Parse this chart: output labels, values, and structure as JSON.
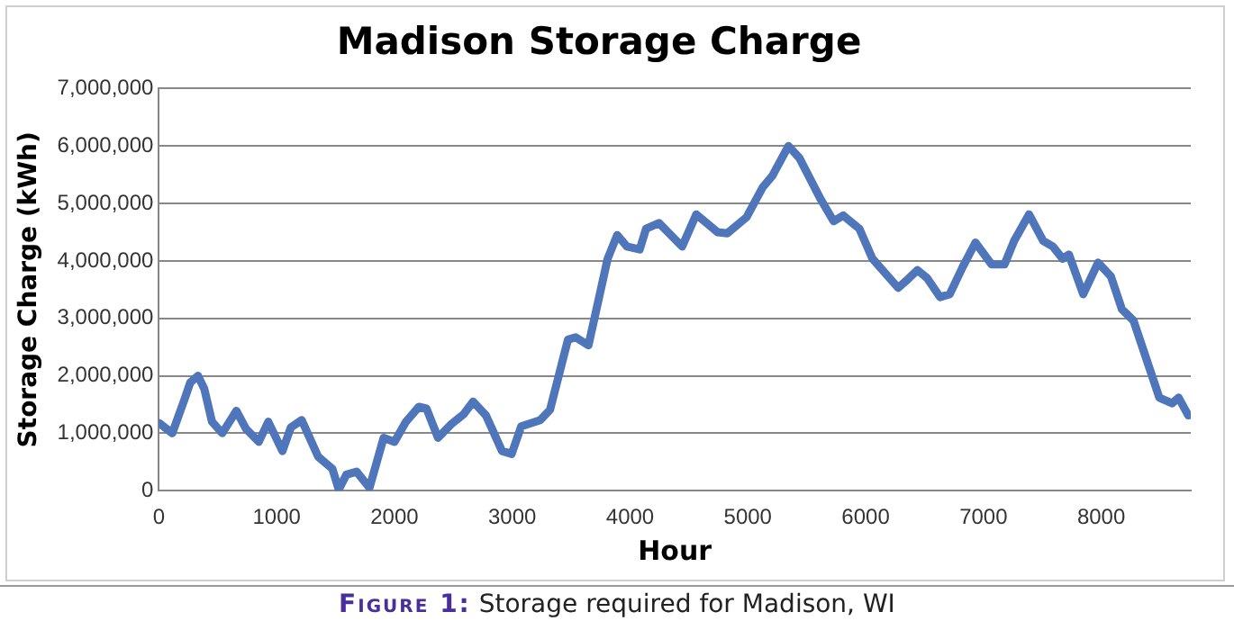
{
  "chart_data": {
    "type": "line",
    "title": "Madison Storage Charge",
    "xlabel": "Hour",
    "ylabel": "Storage Charge (kWh)",
    "annotations": [
      "Figure 1: Storage required for Madison, WI"
    ],
    "xlim": [
      0,
      8760
    ],
    "xticks": [
      0,
      1000,
      2000,
      3000,
      4000,
      5000,
      6000,
      7000,
      8000
    ],
    "ylim": [
      0,
      7000000
    ],
    "yticks": [
      {
        "value": 0,
        "label": "0"
      },
      {
        "value": 1000000,
        "label": "1,000,000"
      },
      {
        "value": 2000000,
        "label": "2,000,000"
      },
      {
        "value": 3000000,
        "label": "3,000,000"
      },
      {
        "value": 4000000,
        "label": "4,000,000"
      },
      {
        "value": 5000000,
        "label": "5,000,000"
      },
      {
        "value": 6000000,
        "label": "6,000,000"
      },
      {
        "value": 7000000,
        "label": "7,000,000"
      }
    ],
    "grid": "y",
    "legend": false,
    "marker": "none",
    "line_style": "solid",
    "x": [
      0,
      114,
      223,
      266,
      332,
      386,
      451,
      538,
      658,
      739,
      848,
      929,
      1049,
      1120,
      1212,
      1353,
      1473,
      1527,
      1592,
      1679,
      1788,
      1908,
      2000,
      2098,
      2207,
      2272,
      2370,
      2478,
      2587,
      2668,
      2777,
      2913,
      2995,
      3076,
      3239,
      3321,
      3473,
      3538,
      3647,
      3810,
      3891,
      3973,
      4082,
      4136,
      4245,
      4442,
      4562,
      4743,
      4825,
      4989,
      5126,
      5208,
      5345,
      5438,
      5619,
      5728,
      5810,
      5947,
      6057,
      6276,
      6358,
      6440,
      6522,
      6631,
      6714,
      6823,
      6932,
      7069,
      7179,
      7261,
      7387,
      7507,
      7589,
      7672,
      7726,
      7847,
      7973,
      8082,
      8175,
      8274,
      8493,
      8602,
      8657,
      8739
    ],
    "series": [
      {
        "color": "#4f75bb",
        "values": [
          1180000,
          1000000,
          1620000,
          1880000,
          2000000,
          1770000,
          1200000,
          1000000,
          1390000,
          1080000,
          850000,
          1200000,
          690000,
          1100000,
          1230000,
          590000,
          380000,
          20000,
          280000,
          330000,
          50000,
          920000,
          850000,
          1200000,
          1460000,
          1430000,
          920000,
          1150000,
          1330000,
          1550000,
          1310000,
          690000,
          640000,
          1120000,
          1230000,
          1410000,
          2630000,
          2670000,
          2530000,
          4040000,
          4450000,
          4250000,
          4200000,
          4560000,
          4660000,
          4250000,
          4810000,
          4500000,
          4480000,
          4760000,
          5280000,
          5480000,
          6000000,
          5790000,
          5070000,
          4690000,
          4790000,
          4560000,
          4040000,
          3530000,
          3680000,
          3840000,
          3700000,
          3370000,
          3420000,
          3890000,
          4320000,
          3940000,
          3940000,
          4350000,
          4810000,
          4350000,
          4250000,
          4040000,
          4110000,
          3420000,
          3970000,
          3730000,
          3160000,
          2960000,
          1620000,
          1520000,
          1620000,
          1310000
        ]
      }
    ]
  }
}
